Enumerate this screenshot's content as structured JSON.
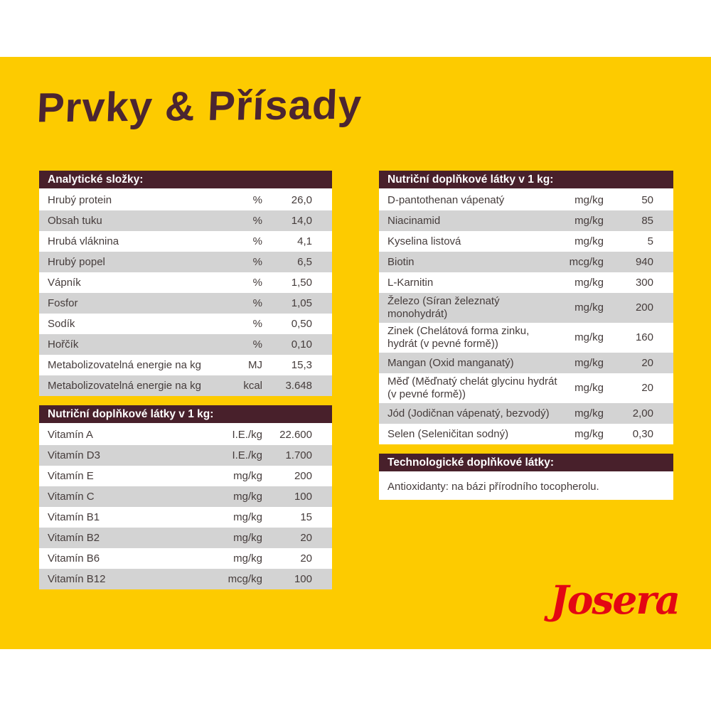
{
  "page": {
    "title": "Prvky & Přísady",
    "brand": "Josera"
  },
  "colors": {
    "background_yellow": "#FDCB00",
    "header_maroon": "#48202B",
    "row_alt_gray": "#D3D3D3",
    "row_text": "#453C3B",
    "title_maroon": "#4B2531",
    "brand_red": "#E30613",
    "white": "#FFFFFF"
  },
  "tables": {
    "analytical": {
      "header": "Analytické složky:",
      "rows": [
        {
          "name": "Hrubý protein",
          "unit": "%",
          "value": "26,0"
        },
        {
          "name": "Obsah tuku",
          "unit": "%",
          "value": "14,0"
        },
        {
          "name": "Hrubá vláknina",
          "unit": "%",
          "value": "4,1"
        },
        {
          "name": "Hrubý popel",
          "unit": "%",
          "value": "6,5"
        },
        {
          "name": "Vápník",
          "unit": "%",
          "value": "1,50"
        },
        {
          "name": "Fosfor",
          "unit": "%",
          "value": "1,05"
        },
        {
          "name": "Sodík",
          "unit": "%",
          "value": "0,50"
        },
        {
          "name": "Hořčík",
          "unit": "%",
          "value": "0,10"
        },
        {
          "name": "Metabolizovatelná energie na kg",
          "unit": "MJ",
          "value": "15,3"
        },
        {
          "name": "Metabolizovatelná energie na kg",
          "unit": "kcal",
          "value": "3.648"
        }
      ]
    },
    "nutritional_left": {
      "header": "Nutriční doplňkové látky v 1 kg:",
      "rows": [
        {
          "name": "Vitamín A",
          "unit": "I.E./kg",
          "value": "22.600"
        },
        {
          "name": "Vitamín D3",
          "unit": "I.E./kg",
          "value": "1.700"
        },
        {
          "name": "Vitamín E",
          "unit": "mg/kg",
          "value": "200"
        },
        {
          "name": "Vitamín C",
          "unit": "mg/kg",
          "value": "100"
        },
        {
          "name": "Vitamín B1",
          "unit": "mg/kg",
          "value": "15"
        },
        {
          "name": "Vitamín B2",
          "unit": "mg/kg",
          "value": "20"
        },
        {
          "name": "Vitamín B6",
          "unit": "mg/kg",
          "value": "20"
        },
        {
          "name": "Vitamín B12",
          "unit": "mcg/kg",
          "value": "100"
        }
      ]
    },
    "nutritional_right": {
      "header": "Nutriční doplňkové látky v 1 kg:",
      "rows": [
        {
          "name": "D-pantothenan vápenatý",
          "unit": "mg/kg",
          "value": "50"
        },
        {
          "name": "Niacinamid",
          "unit": "mg/kg",
          "value": "85"
        },
        {
          "name": "Kyselina listová",
          "unit": "mg/kg",
          "value": "5"
        },
        {
          "name": "Biotin",
          "unit": "mcg/kg",
          "value": "940"
        },
        {
          "name": "L-Karnitin",
          "unit": "mg/kg",
          "value": "300"
        },
        {
          "name": "Železo (Síran železnatý monohydrát)",
          "unit": "mg/kg",
          "value": "200"
        },
        {
          "name": "Zinek (Chelátová forma zinku, hydrát (v pevné formě))",
          "unit": "mg/kg",
          "value": "160"
        },
        {
          "name": "Mangan (Oxid manganatý)",
          "unit": "mg/kg",
          "value": "20"
        },
        {
          "name": "Měď (Měďnatý chelát glycinu hydrát (v pevné formě))",
          "unit": "mg/kg",
          "value": "20"
        },
        {
          "name": "Jód (Jodičnan vápenatý, bezvodý)",
          "unit": "mg/kg",
          "value": "2,00"
        },
        {
          "name": "Selen (Seleničitan sodný)",
          "unit": "mg/kg",
          "value": "0,30"
        }
      ]
    },
    "technological": {
      "header": "Technologické doplňkové látky:",
      "content": "Antioxidanty: na bázi přírodního tocopherolu."
    }
  }
}
